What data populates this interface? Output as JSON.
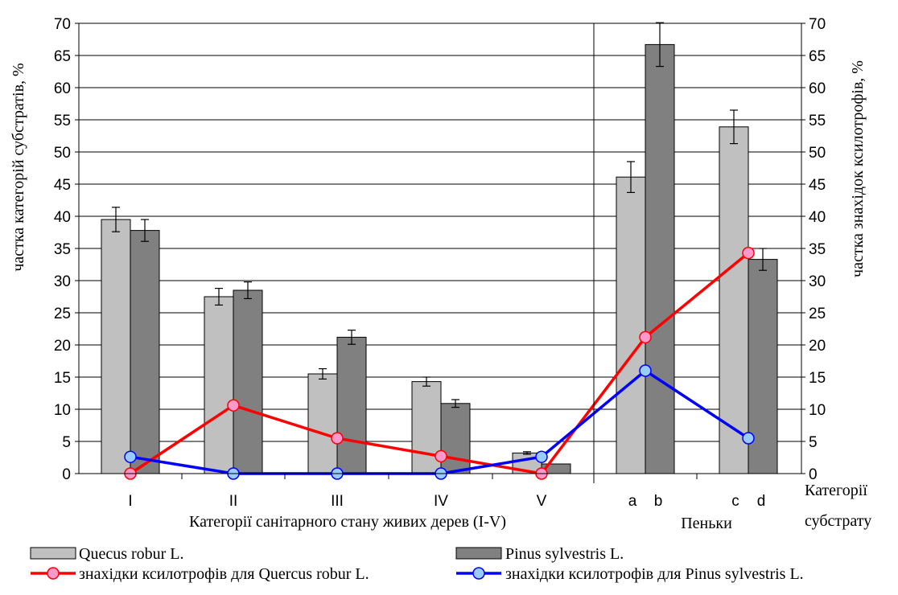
{
  "chart_data": {
    "type": "bar",
    "title": "",
    "ylabel_left": "частка категорій субстратів, %",
    "ylabel_right": "частка знахідок ксилотрофів, %",
    "ylim": [
      0,
      70
    ],
    "yticks": [
      "0",
      "5",
      "10",
      "15",
      "20",
      "25",
      "30",
      "35",
      "40",
      "45",
      "50",
      "55",
      "60",
      "65",
      "70"
    ],
    "categories": [
      "I",
      "II",
      "III",
      "IV",
      "V",
      "a b",
      "c d"
    ],
    "tick_labels": [
      {
        "label": "I",
        "group": 0,
        "offset": 0
      },
      {
        "label": "II",
        "group": 1,
        "offset": 0
      },
      {
        "label": "III",
        "group": 2,
        "offset": 0
      },
      {
        "label": "IV",
        "group": 3,
        "offset": 0
      },
      {
        "label": "V",
        "group": 4,
        "offset": 0
      },
      {
        "label": "a",
        "group": 5,
        "offset": -1
      },
      {
        "label": "b",
        "group": 5,
        "offset": 1
      },
      {
        "label": "c",
        "group": 6,
        "offset": -1
      },
      {
        "label": "d",
        "group": 6,
        "offset": 1
      }
    ],
    "xlabel_left": "Категорії санітарного стану живих дерев (I-V)",
    "xlabel_right": "Пеньки",
    "xlabel_corner": [
      "Категорії",
      "субстрату"
    ],
    "bar_series": [
      {
        "name": "Quecus robur L.",
        "color": "#c0c0c0",
        "values": [
          39.5,
          27.5,
          15.5,
          14.3,
          3.2,
          46.1,
          53.9
        ],
        "errors": [
          1.9,
          1.3,
          0.8,
          0.7,
          0.2,
          2.4,
          2.6
        ]
      },
      {
        "name": "Pinus sylvestris L.",
        "color": "#808080",
        "values": [
          37.8,
          28.5,
          21.2,
          10.9,
          1.5,
          66.7,
          33.3
        ],
        "errors": [
          1.7,
          1.3,
          1.1,
          0.6,
          0.0,
          3.4,
          1.7
        ]
      }
    ],
    "line_series": [
      {
        "name": "знахідки ксилотрофів для Quercus robur L.",
        "color": "#ff0000",
        "marker_fill": "#ff99cc",
        "values": [
          0,
          10.6,
          5.5,
          2.7,
          0,
          21.2,
          34.3
        ]
      },
      {
        "name": "знахідки ксилотрофів для Pinus sylvestris L.",
        "color": "#0000ff",
        "marker_fill": "#99ccff",
        "values": [
          2.6,
          0,
          0,
          0,
          2.6,
          16.0,
          5.5
        ]
      }
    ],
    "legend_position": "bottom",
    "grid": "horizontal"
  }
}
